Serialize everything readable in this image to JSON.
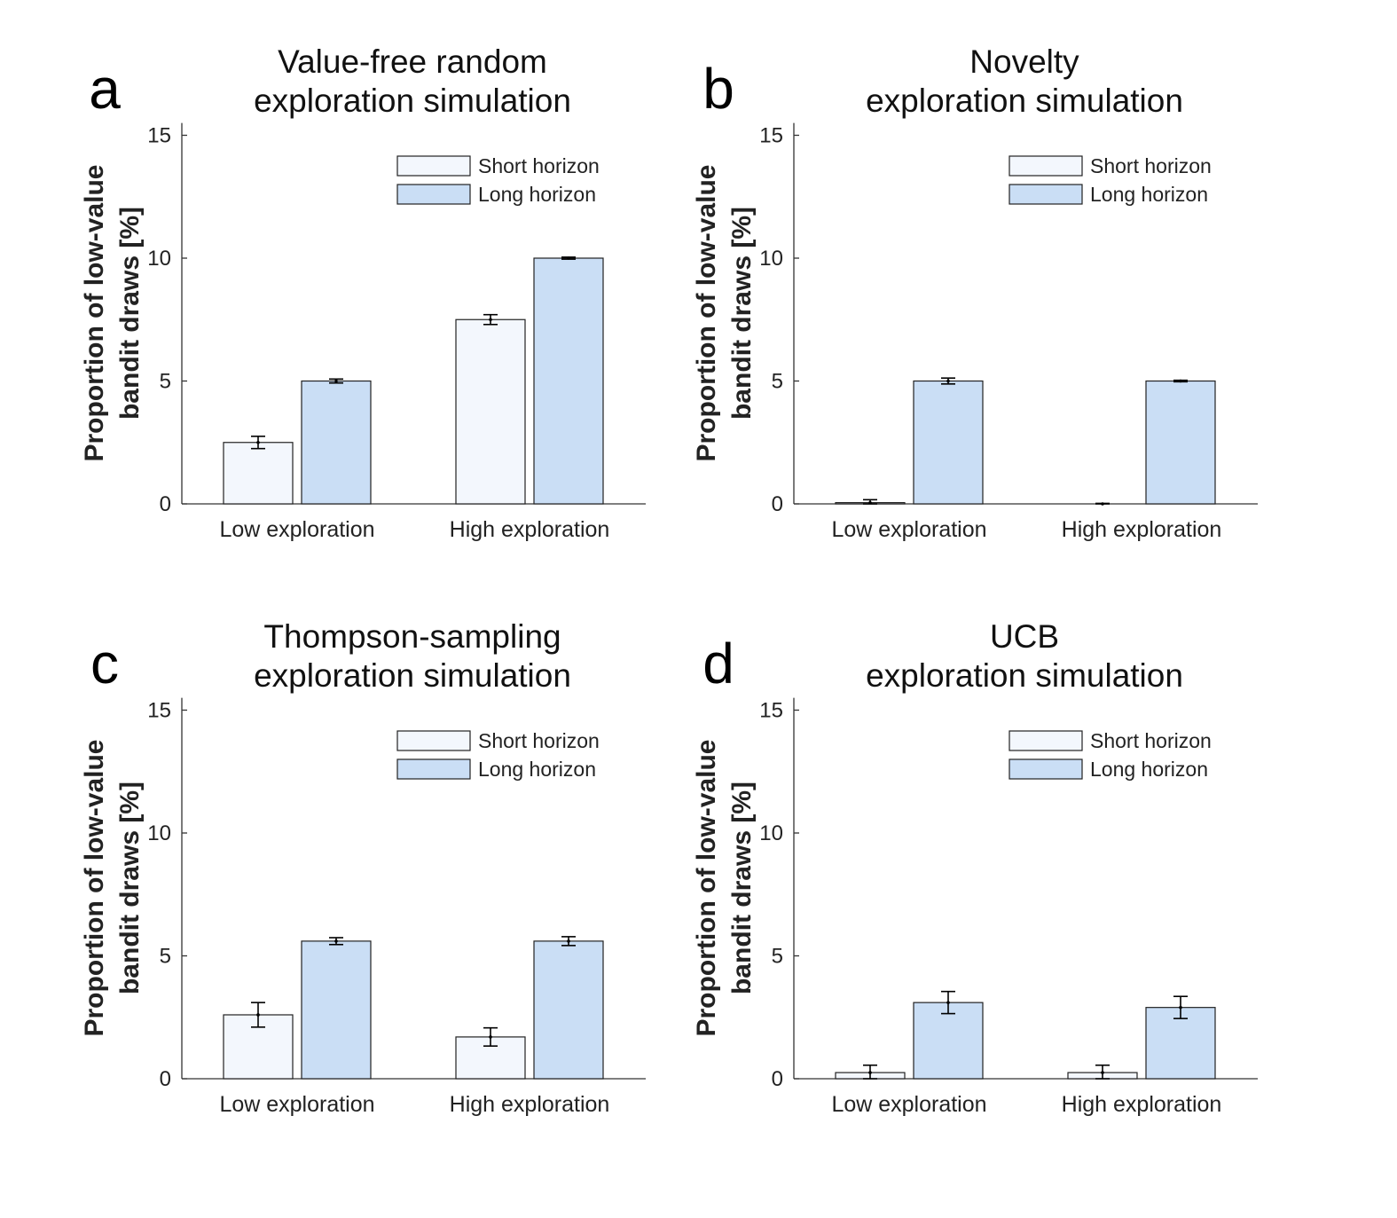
{
  "colors": {
    "short": "#f3f7fd",
    "long": "#cadef5",
    "stroke": "#222222"
  },
  "chart_data": [
    {
      "type": "bar",
      "panel": "a",
      "title_lines": [
        "Value-free random",
        "exploration simulation"
      ],
      "ylabel_lines": [
        "Proportion of low-value",
        "bandit draws [%]"
      ],
      "categories": [
        "Low exploration",
        "High exploration"
      ],
      "yticks": [
        "0",
        "5",
        "10",
        "15"
      ],
      "ylim": [
        0,
        15.5
      ],
      "legend": "top-right",
      "series": [
        {
          "name": "Short horizon",
          "values": [
            2.5,
            7.5
          ],
          "errors": [
            0.25,
            0.2
          ]
        },
        {
          "name": "Long horizon",
          "values": [
            5.0,
            10.0
          ],
          "errors": [
            0.08,
            0.04
          ]
        }
      ]
    },
    {
      "type": "bar",
      "panel": "b",
      "title_lines": [
        "Novelty",
        "exploration simulation"
      ],
      "ylabel_lines": [
        "Proportion of low-value",
        "bandit draws [%]"
      ],
      "categories": [
        "Low exploration",
        "High exploration"
      ],
      "yticks": [
        "0",
        "5",
        "10",
        "15"
      ],
      "ylim": [
        0,
        15.5
      ],
      "legend": "top-right",
      "series": [
        {
          "name": "Short horizon",
          "values": [
            0.05,
            0.0
          ],
          "errors": [
            0.12,
            0.02
          ]
        },
        {
          "name": "Long horizon",
          "values": [
            5.0,
            5.0
          ],
          "errors": [
            0.12,
            0.03
          ]
        }
      ]
    },
    {
      "type": "bar",
      "panel": "c",
      "title_lines": [
        "Thompson-sampling",
        "exploration simulation"
      ],
      "ylabel_lines": [
        "Proportion of low-value",
        "bandit draws [%]"
      ],
      "categories": [
        "Low exploration",
        "High exploration"
      ],
      "yticks": [
        "0",
        "5",
        "10",
        "15"
      ],
      "ylim": [
        0,
        15.5
      ],
      "legend": "top-right",
      "series": [
        {
          "name": "Short horizon",
          "values": [
            2.6,
            1.7
          ],
          "errors": [
            0.5,
            0.37
          ]
        },
        {
          "name": "Long horizon",
          "values": [
            5.6,
            5.6
          ],
          "errors": [
            0.14,
            0.18
          ]
        }
      ]
    },
    {
      "type": "bar",
      "panel": "d",
      "title_lines": [
        "UCB",
        "exploration simulation"
      ],
      "ylabel_lines": [
        "Proportion of low-value",
        "bandit draws [%]"
      ],
      "categories": [
        "Low exploration",
        "High exploration"
      ],
      "yticks": [
        "0",
        "5",
        "10",
        "15"
      ],
      "ylim": [
        0,
        15.5
      ],
      "legend": "top-right",
      "series": [
        {
          "name": "Short horizon",
          "values": [
            0.25,
            0.25
          ],
          "errors": [
            0.3,
            0.3
          ]
        },
        {
          "name": "Long horizon",
          "values": [
            3.1,
            2.9
          ],
          "errors": [
            0.45,
            0.45
          ]
        }
      ]
    }
  ]
}
